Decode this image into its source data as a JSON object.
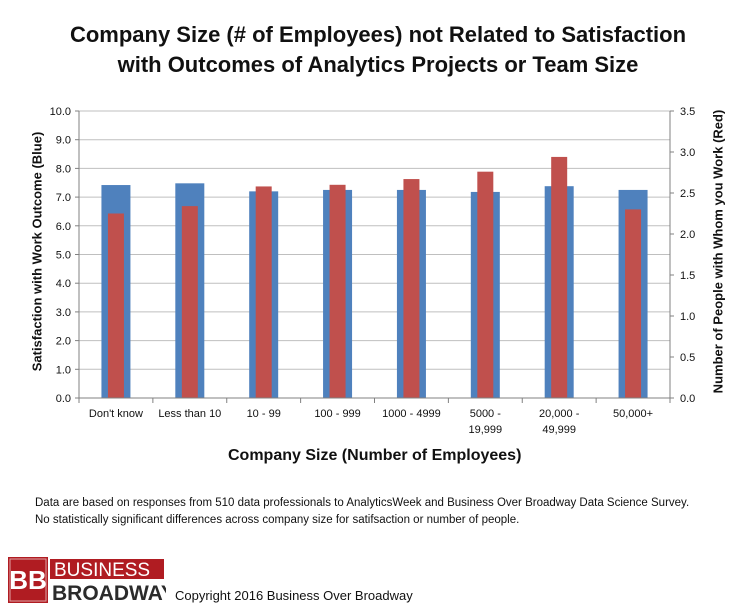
{
  "chart_data": {
    "type": "bar",
    "title_line1": "Company Size (# of Employees) not Related to Satisfaction",
    "title_line2": "with Outcomes of Analytics Projects or Team Size",
    "xlabel": "Company Size (Number of Employees)",
    "ylabel_left": "Satisfaction with Work Outcome (Blue)",
    "ylabel_right": "Number of People with Whom you Work (Red)",
    "categories": [
      [
        "Don't know"
      ],
      [
        "Less than 10"
      ],
      [
        "10 - 99"
      ],
      [
        "100 - 999"
      ],
      [
        "1000 - 4999"
      ],
      [
        "5000 -",
        "19,999"
      ],
      [
        "20,000 -",
        "49,999"
      ],
      [
        "50,000+"
      ]
    ],
    "series": [
      {
        "name": "Satisfaction with Work Outcome",
        "axis": "left",
        "color": "#4f81bd",
        "values": [
          7.42,
          7.48,
          7.2,
          7.25,
          7.25,
          7.18,
          7.38,
          7.25
        ]
      },
      {
        "name": "Number of People with Whom you Work",
        "axis": "right",
        "color": "#c0504d",
        "values": [
          2.25,
          2.34,
          2.58,
          2.6,
          2.67,
          2.76,
          2.94,
          2.3
        ]
      }
    ],
    "ylim_left": [
      0,
      10
    ],
    "yticks_left": [
      "0.0",
      "1.0",
      "2.0",
      "3.0",
      "4.0",
      "5.0",
      "6.0",
      "7.0",
      "8.0",
      "9.0",
      "10.0"
    ],
    "ylim_right": [
      0,
      3.5
    ],
    "yticks_right": [
      "0.0",
      "0.5",
      "1.0",
      "1.5",
      "2.0",
      "2.5",
      "3.0",
      "3.5"
    ],
    "grid": true
  },
  "notes": {
    "line1": "Data are based on responses from 510 data professionals to AnalyticsWeek and Business Over Broadway Data Science Survey.",
    "line2": "No statistically significant differences across company size for satifsaction  or number of people."
  },
  "logo": {
    "monogram": "BB",
    "word1": "BUSINESS",
    "word2": "BROADWAY",
    "color": "#b01c22"
  },
  "copyright": "Copyright 2016 Business Over Broadway"
}
